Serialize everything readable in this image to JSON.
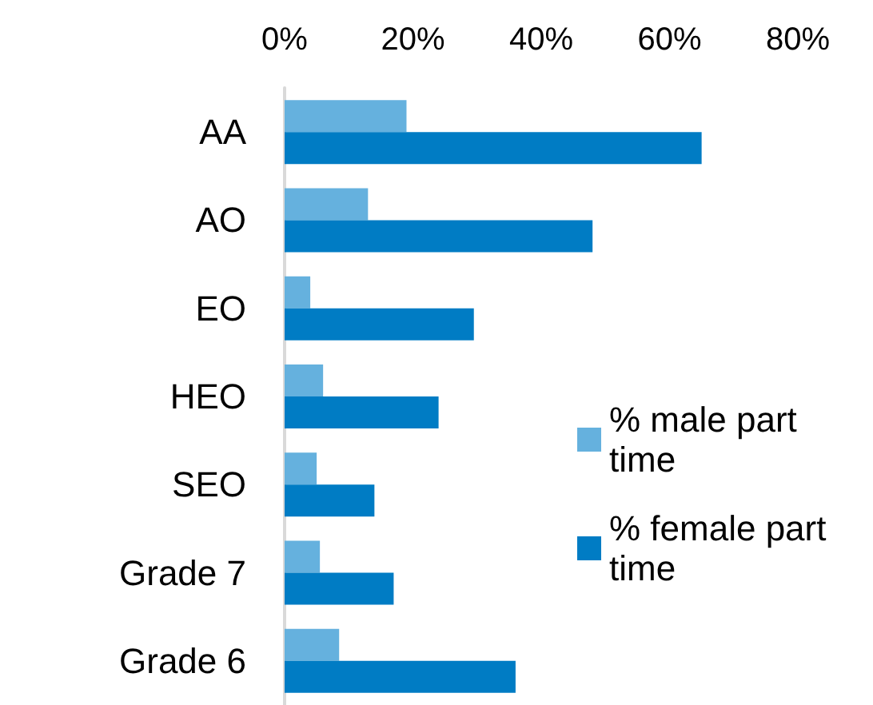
{
  "chart_data": {
    "type": "bar",
    "orientation": "horizontal",
    "categories": [
      "AA",
      "AO",
      "EO",
      "HEO",
      "SEO",
      "Grade 7",
      "Grade 6"
    ],
    "series": [
      {
        "name": "% male part time",
        "color": "#65b1de",
        "values": [
          19,
          13,
          4,
          6,
          5,
          5.5,
          8.5
        ]
      },
      {
        "name": "% female part time",
        "color": "#007cc4",
        "values": [
          65,
          48,
          29.5,
          24,
          14,
          17,
          36
        ]
      }
    ],
    "xlim": [
      0,
      80
    ],
    "xticks": [
      {
        "value": 0,
        "label": "0%"
      },
      {
        "value": 20,
        "label": "20%"
      },
      {
        "value": 40,
        "label": "40%"
      },
      {
        "value": 60,
        "label": "60%"
      },
      {
        "value": 80,
        "label": "80%"
      }
    ],
    "grid": false,
    "legend": "right"
  }
}
